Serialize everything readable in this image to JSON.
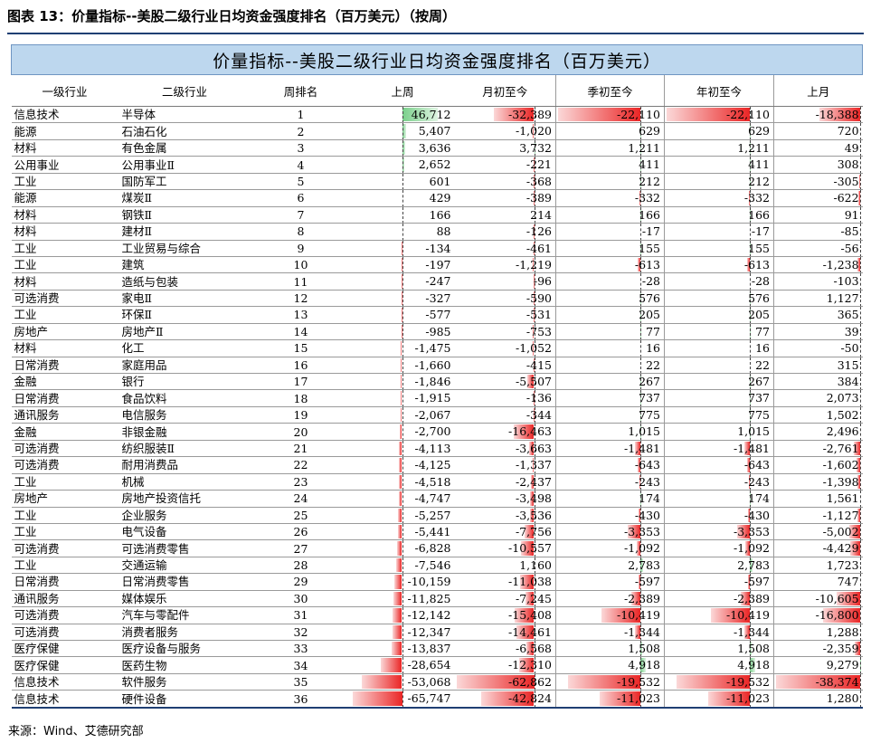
{
  "caption": "图表 13：价量指标--美股二级行业日均资金强度排名（百万美元）（按周）",
  "table_title": "价量指标--美股二级行业日均资金强度排名（百万美元）",
  "headers": [
    "一级行业",
    "二级行业",
    "周排名",
    "上周",
    "月初至今",
    "季初至今",
    "年初至今",
    "上月"
  ],
  "colors": {
    "positive": "#7ad08b",
    "negative": "#ea2626",
    "title_bg": "#bdd7ee",
    "rule": "#1f3f73"
  },
  "rows": [
    {
      "l1": "信息技术",
      "l2": "半导体",
      "rank": "1",
      "lw": 46712,
      "mtd": -32389,
      "qtd": -22110,
      "ytd": -22110,
      "lm": -18388
    },
    {
      "l1": "能源",
      "l2": "石油石化",
      "rank": "2",
      "lw": 5407,
      "mtd": -1020,
      "qtd": 629,
      "ytd": 629,
      "lm": 720
    },
    {
      "l1": "材料",
      "l2": "有色金属",
      "rank": "3",
      "lw": 3636,
      "mtd": 3732,
      "qtd": 1211,
      "ytd": 1211,
      "lm": 49
    },
    {
      "l1": "公用事业",
      "l2": "公用事业Ⅱ",
      "rank": "4",
      "lw": 2652,
      "mtd": -221,
      "qtd": 411,
      "ytd": 411,
      "lm": 308
    },
    {
      "l1": "工业",
      "l2": "国防军工",
      "rank": "5",
      "lw": 601,
      "mtd": -368,
      "qtd": 212,
      "ytd": 212,
      "lm": -305
    },
    {
      "l1": "能源",
      "l2": "煤炭Ⅱ",
      "rank": "6",
      "lw": 429,
      "mtd": -389,
      "qtd": -332,
      "ytd": -332,
      "lm": -622
    },
    {
      "l1": "材料",
      "l2": "钢铁Ⅱ",
      "rank": "7",
      "lw": 166,
      "mtd": 214,
      "qtd": 166,
      "ytd": 166,
      "lm": 91
    },
    {
      "l1": "材料",
      "l2": "建材Ⅱ",
      "rank": "8",
      "lw": 88,
      "mtd": -126,
      "qtd": -17,
      "ytd": -17,
      "lm": -85
    },
    {
      "l1": "工业",
      "l2": "工业贸易与综合",
      "rank": "9",
      "lw": -134,
      "mtd": -461,
      "qtd": 155,
      "ytd": 155,
      "lm": -56
    },
    {
      "l1": "工业",
      "l2": "建筑",
      "rank": "10",
      "lw": -197,
      "mtd": -1219,
      "qtd": -613,
      "ytd": -613,
      "lm": -1238
    },
    {
      "l1": "材料",
      "l2": "造纸与包装",
      "rank": "11",
      "lw": -247,
      "mtd": -96,
      "qtd": -28,
      "ytd": -28,
      "lm": -103
    },
    {
      "l1": "可选消费",
      "l2": "家电Ⅱ",
      "rank": "12",
      "lw": -327,
      "mtd": -590,
      "qtd": 576,
      "ytd": 576,
      "lm": 1127
    },
    {
      "l1": "工业",
      "l2": "环保Ⅱ",
      "rank": "13",
      "lw": -577,
      "mtd": -531,
      "qtd": 205,
      "ytd": 205,
      "lm": 365
    },
    {
      "l1": "房地产",
      "l2": "房地产Ⅱ",
      "rank": "14",
      "lw": -985,
      "mtd": -753,
      "qtd": 77,
      "ytd": 77,
      "lm": 39
    },
    {
      "l1": "材料",
      "l2": "化工",
      "rank": "15",
      "lw": -1475,
      "mtd": -1052,
      "qtd": 16,
      "ytd": 16,
      "lm": -50
    },
    {
      "l1": "日常消费",
      "l2": "家庭用品",
      "rank": "16",
      "lw": -1660,
      "mtd": -415,
      "qtd": 22,
      "ytd": 22,
      "lm": 315
    },
    {
      "l1": "金融",
      "l2": "银行",
      "rank": "17",
      "lw": -1846,
      "mtd": -5507,
      "qtd": 267,
      "ytd": 267,
      "lm": 384
    },
    {
      "l1": "日常消费",
      "l2": "食品饮料",
      "rank": "18",
      "lw": -1915,
      "mtd": -136,
      "qtd": 737,
      "ytd": 737,
      "lm": 2073
    },
    {
      "l1": "通讯服务",
      "l2": "电信服务",
      "rank": "19",
      "lw": -2067,
      "mtd": -344,
      "qtd": 775,
      "ytd": 775,
      "lm": 1502
    },
    {
      "l1": "金融",
      "l2": "非银金融",
      "rank": "20",
      "lw": -2700,
      "mtd": -16463,
      "qtd": 1015,
      "ytd": 1015,
      "lm": 2496
    },
    {
      "l1": "可选消费",
      "l2": "纺织服装Ⅱ",
      "rank": "21",
      "lw": -4113,
      "mtd": -3663,
      "qtd": -1481,
      "ytd": -1481,
      "lm": -2761
    },
    {
      "l1": "可选消费",
      "l2": "耐用消费品",
      "rank": "22",
      "lw": -4125,
      "mtd": -1337,
      "qtd": -643,
      "ytd": -643,
      "lm": -1602
    },
    {
      "l1": "工业",
      "l2": "机械",
      "rank": "23",
      "lw": -4518,
      "mtd": -2437,
      "qtd": -243,
      "ytd": -243,
      "lm": -1398
    },
    {
      "l1": "房地产",
      "l2": "房地产投资信托",
      "rank": "24",
      "lw": -4747,
      "mtd": -3498,
      "qtd": 174,
      "ytd": 174,
      "lm": 1561
    },
    {
      "l1": "工业",
      "l2": "企业服务",
      "rank": "25",
      "lw": -5257,
      "mtd": -3536,
      "qtd": -430,
      "ytd": -430,
      "lm": -1127
    },
    {
      "l1": "工业",
      "l2": "电气设备",
      "rank": "26",
      "lw": -5441,
      "mtd": -7756,
      "qtd": -3353,
      "ytd": -3353,
      "lm": -5002
    },
    {
      "l1": "可选消费",
      "l2": "可选消费零售",
      "rank": "27",
      "lw": -6828,
      "mtd": -10557,
      "qtd": -1092,
      "ytd": -1092,
      "lm": -4429
    },
    {
      "l1": "工业",
      "l2": "交通运输",
      "rank": "28",
      "lw": -7546,
      "mtd": 1160,
      "qtd": 2783,
      "ytd": 2783,
      "lm": 1723
    },
    {
      "l1": "日常消费",
      "l2": "日常消费零售",
      "rank": "29",
      "lw": -10159,
      "mtd": -11038,
      "qtd": -597,
      "ytd": -597,
      "lm": 747
    },
    {
      "l1": "通讯服务",
      "l2": "媒体娱乐",
      "rank": "30",
      "lw": -11825,
      "mtd": -7245,
      "qtd": -2389,
      "ytd": -2389,
      "lm": -10605
    },
    {
      "l1": "可选消费",
      "l2": "汽车与零配件",
      "rank": "31",
      "lw": -12142,
      "mtd": -15408,
      "qtd": -10419,
      "ytd": -10419,
      "lm": -16800
    },
    {
      "l1": "可选消费",
      "l2": "消费者服务",
      "rank": "32",
      "lw": -12347,
      "mtd": -14461,
      "qtd": -1344,
      "ytd": -1344,
      "lm": 1288
    },
    {
      "l1": "医疗保健",
      "l2": "医疗设备与服务",
      "rank": "33",
      "lw": -13837,
      "mtd": -6568,
      "qtd": 1508,
      "ytd": 1508,
      "lm": -2359
    },
    {
      "l1": "医疗保健",
      "l2": "医药生物",
      "rank": "34",
      "lw": -28654,
      "mtd": -12310,
      "qtd": 4918,
      "ytd": 4918,
      "lm": 9279
    },
    {
      "l1": "信息技术",
      "l2": "软件服务",
      "rank": "35",
      "lw": -53068,
      "mtd": -62862,
      "qtd": -19532,
      "ytd": -19532,
      "lm": -38374
    },
    {
      "l1": "信息技术",
      "l2": "硬件设备",
      "rank": "36",
      "lw": -65747,
      "mtd": -42824,
      "qtd": -11023,
      "ytd": -11023,
      "lm": 1280
    }
  ],
  "source": "来源：Wind、艾德研究部"
}
